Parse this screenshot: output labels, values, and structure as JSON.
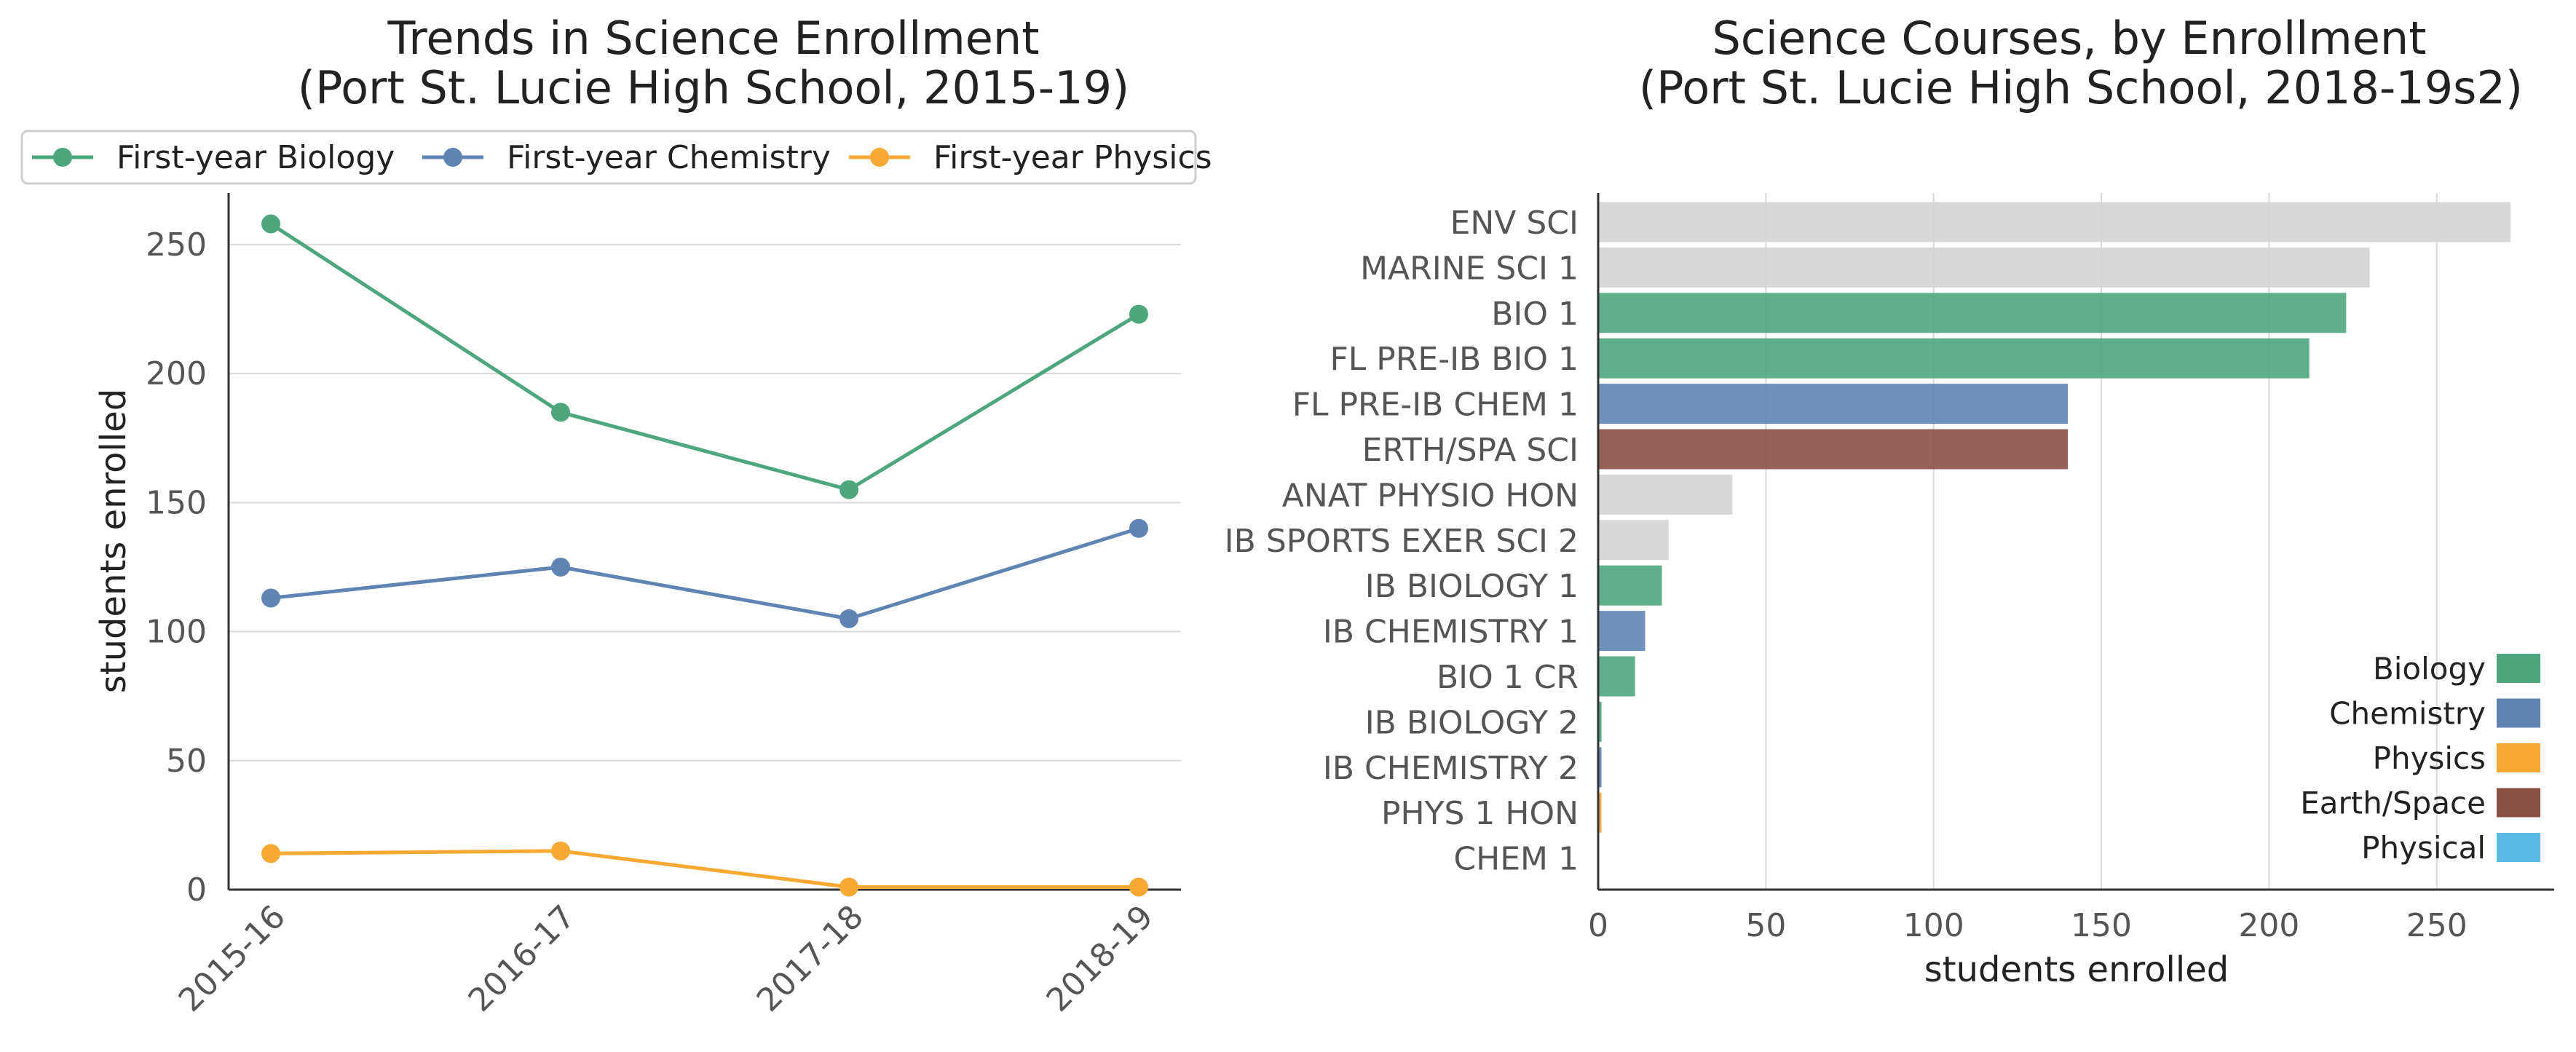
{
  "chart_data": [
    {
      "type": "line",
      "title": "Trends in Science Enrollment",
      "subtitle": "(Port St. Lucie High School, 2015-19)",
      "categories": [
        "2015-16",
        "2016-17",
        "2017-18",
        "2018-19"
      ],
      "series": [
        {
          "name": "First-year Biology",
          "color": "#4ea67f",
          "values": [
            258,
            185,
            155,
            223
          ]
        },
        {
          "name": "First-year Chemistry",
          "color": "#5f84b3",
          "values": [
            113,
            125,
            105,
            140
          ]
        },
        {
          "name": "First-year Physics",
          "color": "#f7a934",
          "values": [
            14,
            15,
            1,
            1
          ]
        }
      ],
      "xlabel": "",
      "ylabel": "students enrolled",
      "ylim": [
        0,
        270
      ],
      "yticks": [
        0,
        50,
        100,
        150,
        200,
        250
      ],
      "grid": "horizontal",
      "legend": "top"
    },
    {
      "type": "bar",
      "orientation": "horizontal",
      "title": "Science Courses, by Enrollment",
      "subtitle": "(Port St. Lucie High School, 2018-19s2)",
      "categories": [
        "ENV SCI",
        "MARINE SCI 1",
        "BIO 1",
        "FL PRE-IB BIO 1",
        "FL PRE-IB CHEM 1",
        "ERTH/SPA SCI",
        "ANAT PHYSIO HON",
        "IB SPORTS EXER SCI 2",
        "IB BIOLOGY 1",
        "IB CHEMISTRY 1",
        "BIO 1 CR",
        "IB BIOLOGY 2",
        "IB CHEMISTRY 2",
        "PHYS 1 HON",
        "CHEM 1"
      ],
      "values": [
        272,
        230,
        223,
        212,
        140,
        140,
        40,
        21,
        19,
        14,
        11,
        1,
        1,
        1,
        0
      ],
      "bar_groups": [
        "other",
        "other",
        "Biology",
        "Biology",
        "Chemistry",
        "Earth/Space",
        "other",
        "other",
        "Biology",
        "Chemistry",
        "Biology",
        "Biology",
        "Chemistry",
        "Physics",
        "Chemistry"
      ],
      "group_colors": {
        "Biology": "#4ea67f",
        "Chemistry": "#5f84b3",
        "Physics": "#f7a934",
        "Earth/Space": "#8b5045",
        "Physical": "#5bb9ea",
        "other": "#d4d4d4"
      },
      "legend_items": [
        "Biology",
        "Chemistry",
        "Physics",
        "Earth/Space",
        "Physical"
      ],
      "xlabel": "students enrolled",
      "ylabel": "",
      "xlim": [
        0,
        285
      ],
      "xticks": [
        0,
        50,
        100,
        150,
        200,
        250
      ],
      "grid": "vertical",
      "legend": "bottom-right"
    }
  ]
}
